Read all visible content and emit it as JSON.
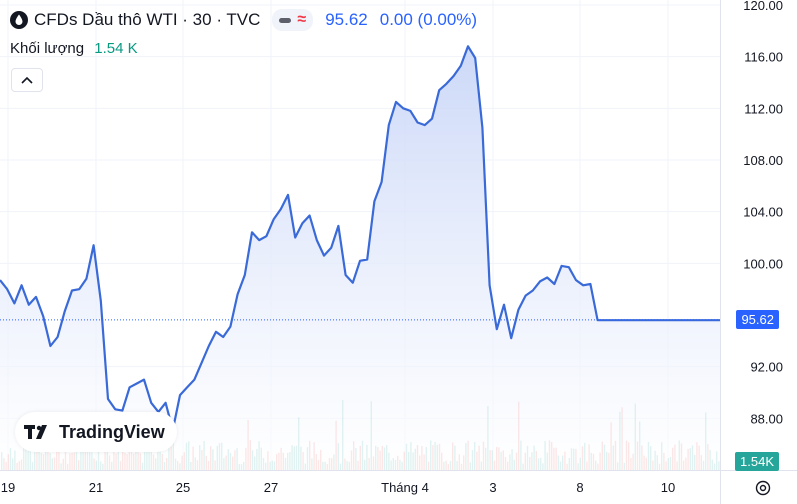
{
  "legend": {
    "title": "CFDs Dầu thô WTI · 30 · TVC",
    "price": "95.62",
    "change": "0.00 (0.00%)",
    "icon": "drop-icon"
  },
  "volume": {
    "label": "Khối lượng",
    "value": "1.54 K"
  },
  "brand": "TradingView",
  "price_label": "95.62",
  "volume_label": "1.54K",
  "colors": {
    "line": "#3a6ad8",
    "area_top": "#c6d4f7",
    "area_bottom": "#ffffff",
    "vol_up": "#26a69a",
    "vol_down": "#ef5350",
    "price_tag": "#2962ff"
  },
  "chart_data": {
    "type": "area",
    "symbol": "CFDs Dầu thô WTI",
    "ylim": [
      84,
      120
    ],
    "y_ticks": [
      "120.00",
      "116.00",
      "112.00",
      "108.00",
      "104.00",
      "100.00",
      "92.00",
      "88.00"
    ],
    "x_ticks": [
      "19",
      "21",
      "25",
      "27",
      "Tháng 4",
      "3",
      "8",
      "10"
    ],
    "grid": true,
    "last_price": 95.62,
    "series": [
      {
        "x": [
          0,
          0.9,
          1.8,
          2.7,
          3.6,
          4.5,
          5.4,
          6.3,
          7.2,
          8.1,
          9,
          9.9,
          10.8,
          11.7,
          12.6,
          13.5,
          14.4,
          15.3,
          16.2,
          17.1,
          18,
          18.9,
          19.8,
          20.7,
          21.6,
          22.5,
          23.4,
          24.3,
          25.2,
          26.1,
          27,
          27.9,
          28.8,
          29.7,
          30.6,
          31.5,
          32.4,
          33.3,
          34.2,
          35.1,
          36,
          36.9,
          37.8,
          38.7,
          39.6,
          40.5,
          41.4,
          42.3,
          43.2,
          44.1,
          45,
          45.9,
          46.8,
          47.7,
          48.6,
          49.5,
          50.4,
          51.3,
          52.2,
          53.1,
          54,
          54.9,
          55.8,
          56.7,
          57.6,
          58.5,
          59.4,
          60.3,
          61.2,
          62.1,
          63,
          63.9,
          64.8,
          65.7,
          66.6,
          67.5,
          68.4,
          69.3,
          70.2,
          71.1,
          72,
          72.9,
          73.8,
          74.7,
          75.6,
          76.5,
          77.4,
          78.3,
          79.2,
          80.1,
          81,
          81.9,
          82.8,
          83.7,
          84.6,
          85.5,
          86.4,
          87.3,
          88.2,
          89.1,
          90
        ],
        "values": [
          98.7,
          98.0,
          96.9,
          98.3,
          96.8,
          97.4,
          95.9,
          93.6,
          94.3,
          96.3,
          97.9,
          98.0,
          98.8,
          101.4,
          97.1,
          89.5,
          88.7,
          88.6,
          90.4,
          90.7,
          91.0,
          89.2,
          88.5,
          89.2,
          87.1,
          89.8,
          90.4,
          91.0,
          92.3,
          93.6,
          94.7,
          94.3,
          95.1,
          97.6,
          99.1,
          102.4,
          101.8,
          102.1,
          103.4,
          104.2,
          105.3,
          102.0,
          103.1,
          103.7,
          101.8,
          100.6,
          101.2,
          102.9,
          99.1,
          98.5,
          100.2,
          100.3,
          104.8,
          106.3,
          110.7,
          112.5,
          112.0,
          111.8,
          110.9,
          110.7,
          111.2,
          113.4,
          113.9,
          114.5,
          115.3,
          116.8,
          115.9,
          110.5,
          98.3,
          94.9,
          96.8,
          94.2,
          96.4,
          97.5,
          97.9,
          98.6,
          98.9,
          98.4,
          99.8,
          99.7,
          98.7,
          98.3,
          98.4,
          95.6,
          95.6,
          95.6,
          95.6,
          95.6,
          95.6,
          95.6,
          95.6,
          95.6,
          95.6,
          95.6,
          95.6,
          95.6,
          95.6,
          95.6,
          95.6,
          95.6,
          95.6
        ]
      }
    ]
  }
}
